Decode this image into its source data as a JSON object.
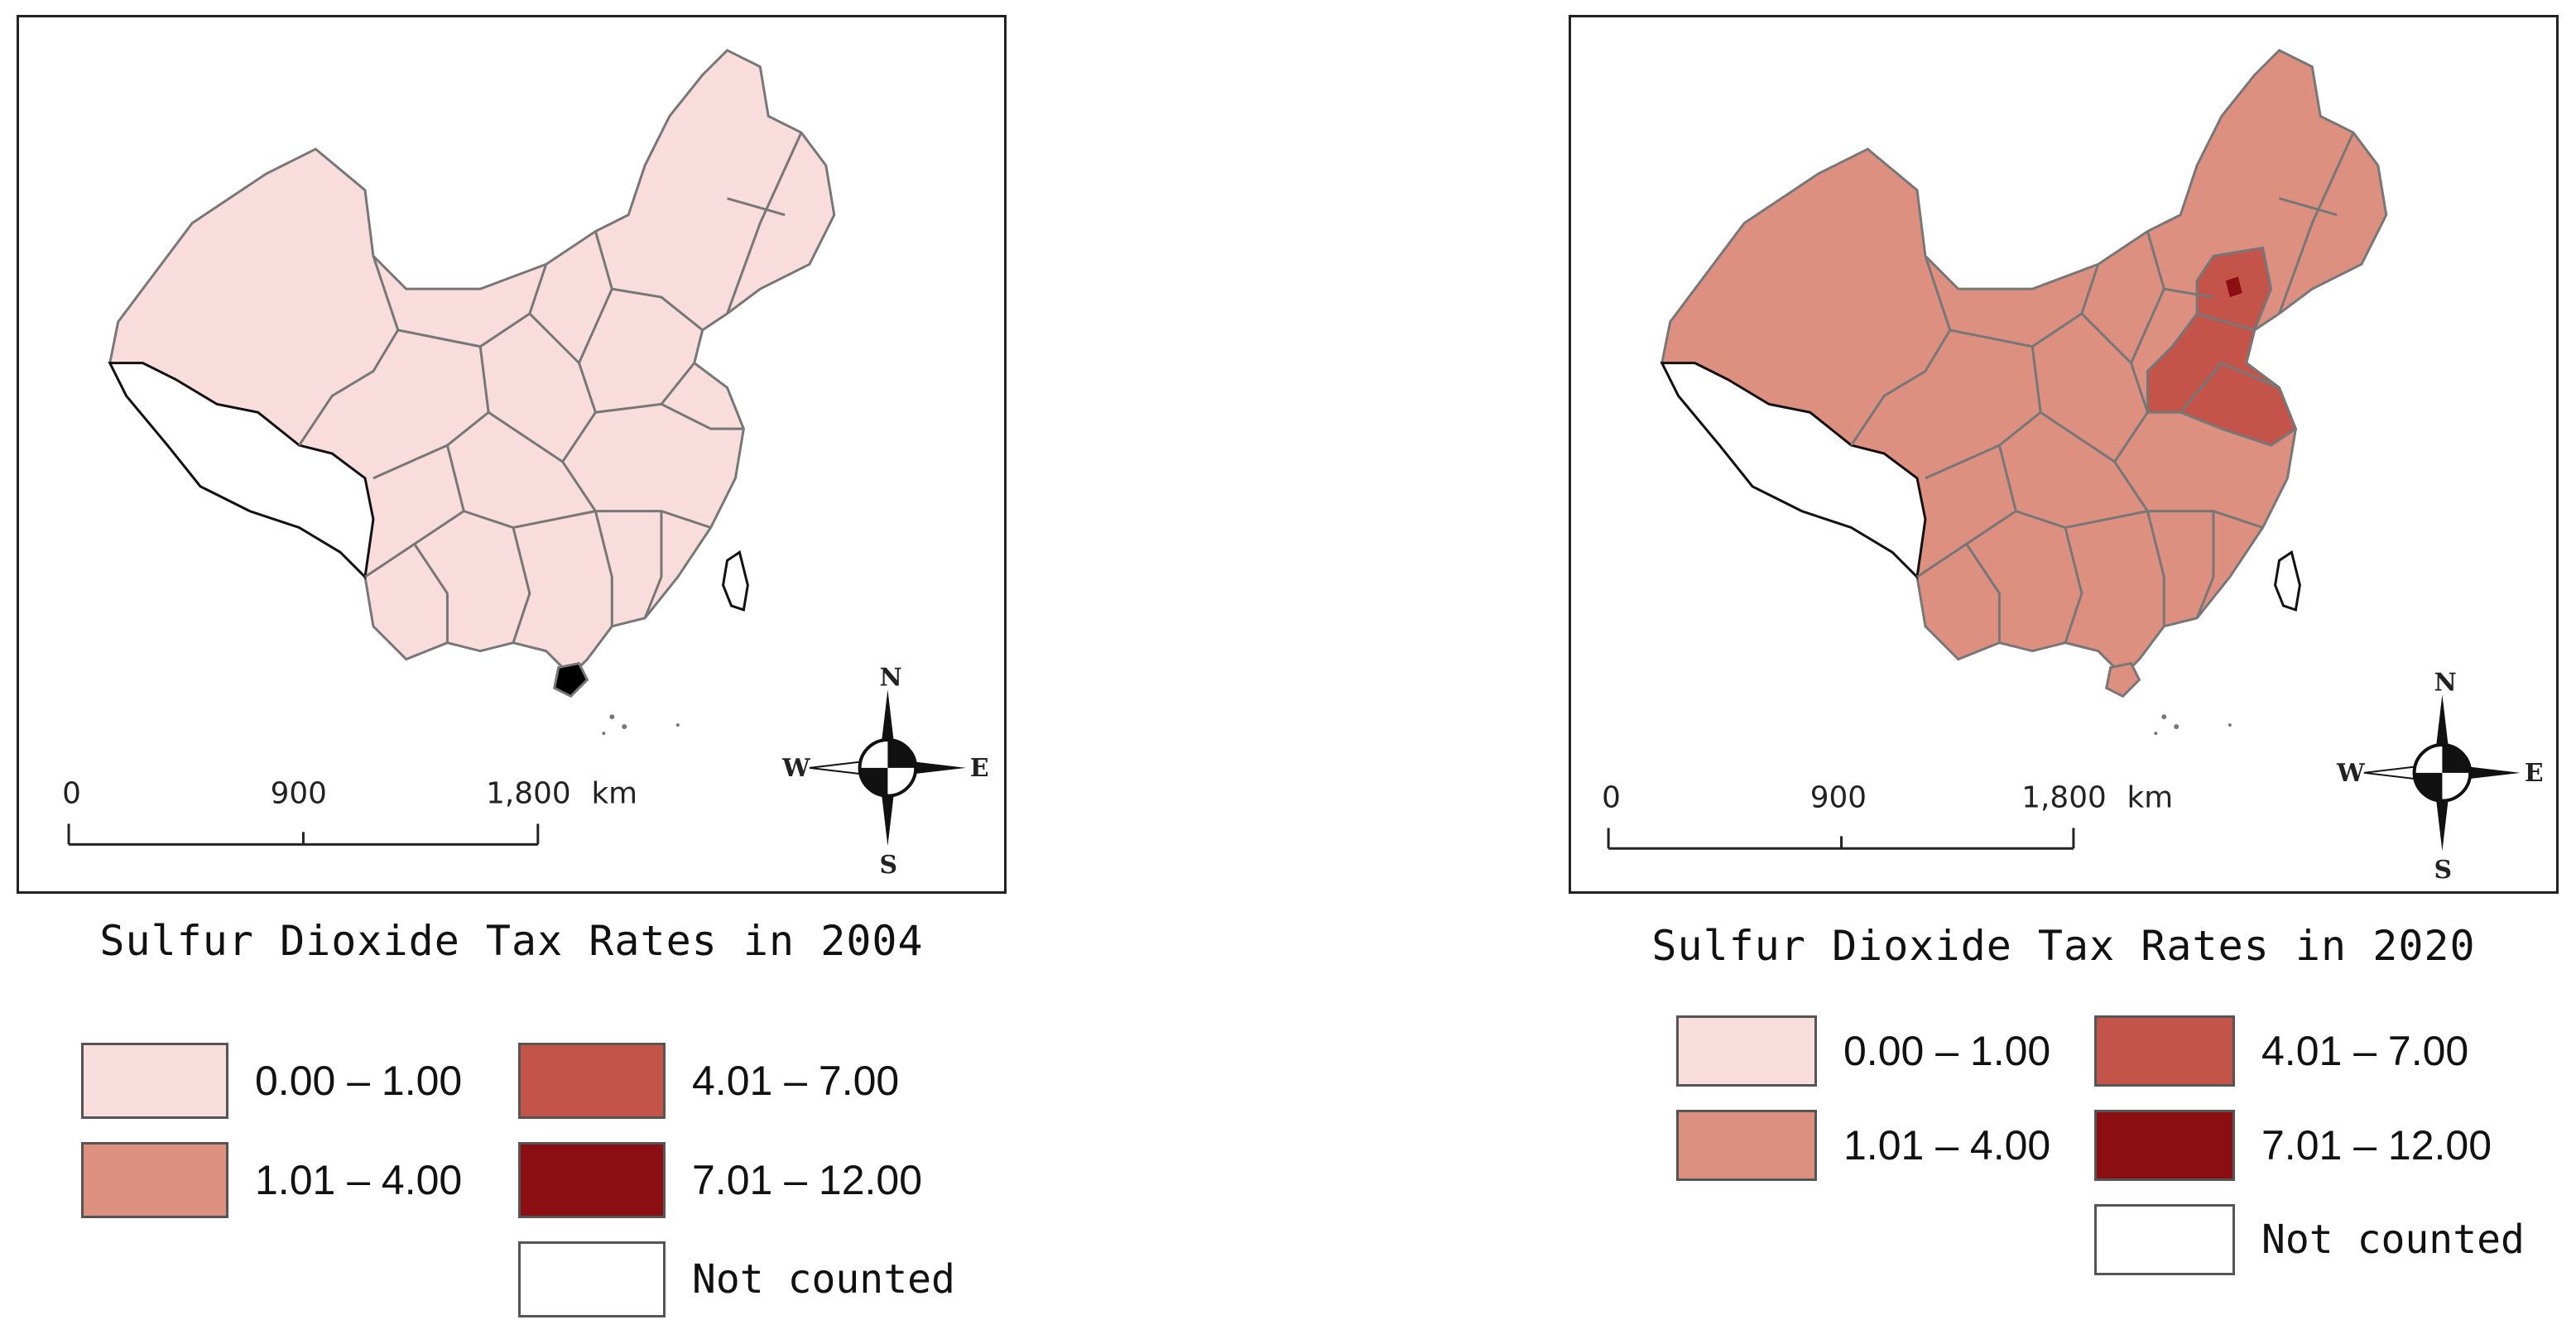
{
  "maps": [
    {
      "title": "Sulfur Dioxide Tax Rates in 2004",
      "year": "2004",
      "fill_default": "#f9dcdc",
      "fill_province_accent": null,
      "scale": {
        "ticks": [
          "0",
          "900",
          "1,800"
        ],
        "unit": "km"
      },
      "compass": {
        "n": "N",
        "s": "S",
        "e": "E",
        "w": "W"
      }
    },
    {
      "title": "Sulfur Dioxide Tax Rates in 2020",
      "year": "2020",
      "fill_default": "#dd8f80",
      "fill_province_accent": "#c4544a",
      "fill_province_max": "#8b0f12",
      "scale": {
        "ticks": [
          "0",
          "900",
          "1,800"
        ],
        "unit": "km"
      },
      "compass": {
        "n": "N",
        "s": "S",
        "e": "E",
        "w": "W"
      }
    }
  ],
  "legend": {
    "classes": [
      {
        "label": "0.00 – 1.00",
        "color": "#f9dcdc"
      },
      {
        "label": "1.01 – 4.00",
        "color": "#dd8f80"
      },
      {
        "label": "4.01 – 7.00",
        "color": "#c4544a"
      },
      {
        "label": "7.01 – 12.00",
        "color": "#8b0f12"
      },
      {
        "label": "Not counted",
        "color": "#ffffff"
      }
    ]
  }
}
